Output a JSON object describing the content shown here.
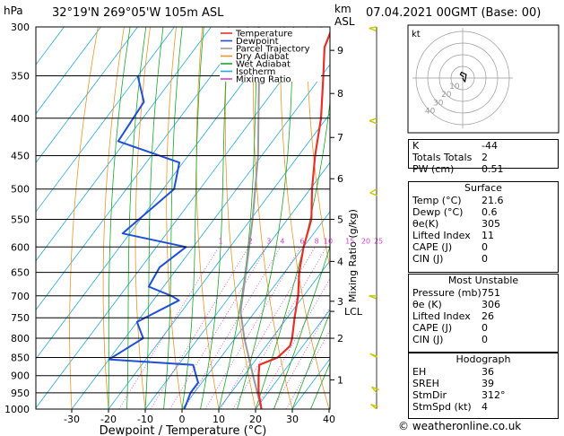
{
  "header": {
    "location": "32°19'N 269°05'W 105m ASL",
    "datetime": "07.04.2021 00GMT (Base: 00)",
    "hpa_label": "hPa",
    "km_label": "km",
    "asl_label": "ASL"
  },
  "chart_data": {
    "type": "skew-t log-p diagram",
    "title": "32°19'N 269°05'W 105m ASL",
    "xlabel": "Dewpoint / Temperature (°C)",
    "ylabel": "hPa",
    "right_ylabel": "Mixing Ratio (g/kg)",
    "temperature_ticks": [
      -30,
      -20,
      -10,
      0,
      10,
      20,
      30,
      40
    ],
    "pressure_levels": [
      300,
      350,
      400,
      450,
      500,
      550,
      600,
      650,
      700,
      750,
      800,
      850,
      900,
      950,
      1000
    ],
    "height_ticks_km": [
      {
        "km": 1,
        "p": 912
      },
      {
        "km": 2,
        "p": 800
      },
      {
        "km": 3,
        "p": 712
      },
      {
        "km": 4,
        "p": 628
      },
      {
        "km": 5,
        "p": 550
      },
      {
        "km": 6,
        "p": 484
      },
      {
        "km": 7,
        "p": 425
      },
      {
        "km": 8,
        "p": 370
      },
      {
        "km": 9,
        "p": 323
      }
    ],
    "lcl": {
      "label": "LCL",
      "p": 735
    },
    "mixing_ratio_labels": [
      "1",
      "2",
      "3",
      "4",
      "6",
      "8",
      "10",
      "15",
      "20",
      "25"
    ],
    "legend": [
      {
        "label": "Temperature",
        "color": "#e8302a"
      },
      {
        "label": "Dewpoint",
        "color": "#1f4fd8"
      },
      {
        "label": "Parcel Trajectory",
        "color": "#9a9a9a"
      },
      {
        "label": "Dry Adiabat",
        "color": "#e8962c"
      },
      {
        "label": "Wet Adiabat",
        "color": "#1aa62a"
      },
      {
        "label": "Isotherm",
        "color": "#26a9e0"
      },
      {
        "label": "Mixing Ratio",
        "color": "#cc44cc"
      }
    ],
    "series": [
      {
        "name": "Temperature",
        "points": [
          {
            "p": 1000,
            "t": 21.6
          },
          {
            "p": 950,
            "t": 17.5
          },
          {
            "p": 900,
            "t": 14.0
          },
          {
            "p": 870,
            "t": 12.0
          },
          {
            "p": 850,
            "t": 15.5
          },
          {
            "p": 820,
            "t": 16.5
          },
          {
            "p": 800,
            "t": 15.5
          },
          {
            "p": 750,
            "t": 12.0
          },
          {
            "p": 700,
            "t": 8.5
          },
          {
            "p": 650,
            "t": 4.0
          },
          {
            "p": 600,
            "t": 0.0
          },
          {
            "p": 550,
            "t": -3.5
          },
          {
            "p": 500,
            "t": -9.5
          },
          {
            "p": 450,
            "t": -15.5
          },
          {
            "p": 400,
            "t": -21.5
          },
          {
            "p": 350,
            "t": -29.5
          },
          {
            "p": 320,
            "t": -35.0
          },
          {
            "p": 300,
            "t": -37.0
          }
        ]
      },
      {
        "name": "Dewpoint",
        "points": [
          {
            "p": 1000,
            "t": 0.6
          },
          {
            "p": 950,
            "t": -1.0
          },
          {
            "p": 920,
            "t": -1.0
          },
          {
            "p": 900,
            "t": -3.0
          },
          {
            "p": 870,
            "t": -6.0
          },
          {
            "p": 855,
            "t": -30.0
          },
          {
            "p": 800,
            "t": -25.0
          },
          {
            "p": 760,
            "t": -30.0
          },
          {
            "p": 710,
            "t": -23.0
          },
          {
            "p": 700,
            "t": -26.0
          },
          {
            "p": 680,
            "t": -34.0
          },
          {
            "p": 640,
            "t": -35.0
          },
          {
            "p": 600,
            "t": -32.0
          },
          {
            "p": 575,
            "t": -52.0
          },
          {
            "p": 500,
            "t": -47.0
          },
          {
            "p": 460,
            "t": -51.0
          },
          {
            "p": 430,
            "t": -72.0
          },
          {
            "p": 380,
            "t": -73.0
          },
          {
            "p": 350,
            "t": -80.0
          }
        ]
      },
      {
        "name": "Parcel Trajectory",
        "points": [
          {
            "p": 1000,
            "t": 21.6
          },
          {
            "p": 900,
            "t": 12.5
          },
          {
            "p": 800,
            "t": 2.5
          },
          {
            "p": 735,
            "t": -4.0
          },
          {
            "p": 650,
            "t": -10.5
          },
          {
            "p": 550,
            "t": -19.5
          },
          {
            "p": 450,
            "t": -31.0
          },
          {
            "p": 350,
            "t": -47.0
          },
          {
            "p": 300,
            "t": -57.0
          }
        ]
      }
    ],
    "wind_barbs": [
      {
        "p": 1000,
        "dir": 310,
        "spd": 5
      },
      {
        "p": 950,
        "dir": 320,
        "spd": 5
      },
      {
        "p": 850,
        "dir": 300,
        "spd": 10
      },
      {
        "p": 700,
        "dir": 270,
        "spd": 10
      },
      {
        "p": 500,
        "dir": 240,
        "spd": 15
      },
      {
        "p": 400,
        "dir": 250,
        "spd": 20
      },
      {
        "p": 300,
        "dir": 260,
        "spd": 25
      }
    ],
    "hodograph": {
      "label": "kt",
      "ring_labels": [
        "10",
        "20",
        "30",
        "40"
      ],
      "points": [
        {
          "u": 0,
          "v": 0
        },
        {
          "u": 1,
          "v": -2
        },
        {
          "u": 2,
          "v": -3
        },
        {
          "u": 3,
          "v": 3
        },
        {
          "u": -1,
          "v": 5
        },
        {
          "u": -2,
          "v": 3
        },
        {
          "u": 1,
          "v": 1
        }
      ]
    }
  },
  "indices": [
    {
      "key": "K",
      "value": "-44"
    },
    {
      "key": "Totals Totals",
      "value": "2"
    },
    {
      "key": "PW (cm)",
      "value": "0.51"
    }
  ],
  "surface": {
    "title": "Surface",
    "rows": [
      {
        "key": "Temp (°C)",
        "value": "21.6"
      },
      {
        "key": "Dewp (°C)",
        "value": "0.6"
      },
      {
        "key": "θe(K)",
        "value": "305"
      },
      {
        "key": "Lifted Index",
        "value": "11"
      },
      {
        "key": "CAPE (J)",
        "value": "0"
      },
      {
        "key": "CIN (J)",
        "value": "0"
      }
    ]
  },
  "most_unstable": {
    "title": "Most Unstable",
    "rows": [
      {
        "key": "Pressure (mb)",
        "value": "751"
      },
      {
        "key": "θe (K)",
        "value": "306"
      },
      {
        "key": "Lifted Index",
        "value": "26"
      },
      {
        "key": "CAPE (J)",
        "value": "0"
      },
      {
        "key": "CIN (J)",
        "value": "0"
      }
    ]
  },
  "hodograph_box": {
    "title": "Hodograph",
    "rows": [
      {
        "key": "EH",
        "value": "36"
      },
      {
        "key": "SREH",
        "value": "39"
      },
      {
        "key": "StmDir",
        "value": "312°"
      },
      {
        "key": "StmSpd (kt)",
        "value": "4"
      }
    ]
  },
  "copyright": "© weatheronline.co.uk",
  "colors": {
    "temperature": "#e8302a",
    "dewpoint": "#1f4fd8",
    "parcel": "#9a9a9a",
    "dry_adiabat": "#e8962c",
    "wet_adiabat": "#1aa62a",
    "isotherm": "#26a9e0",
    "mixing_ratio": "#cc44cc",
    "wind": "#c8c800"
  }
}
